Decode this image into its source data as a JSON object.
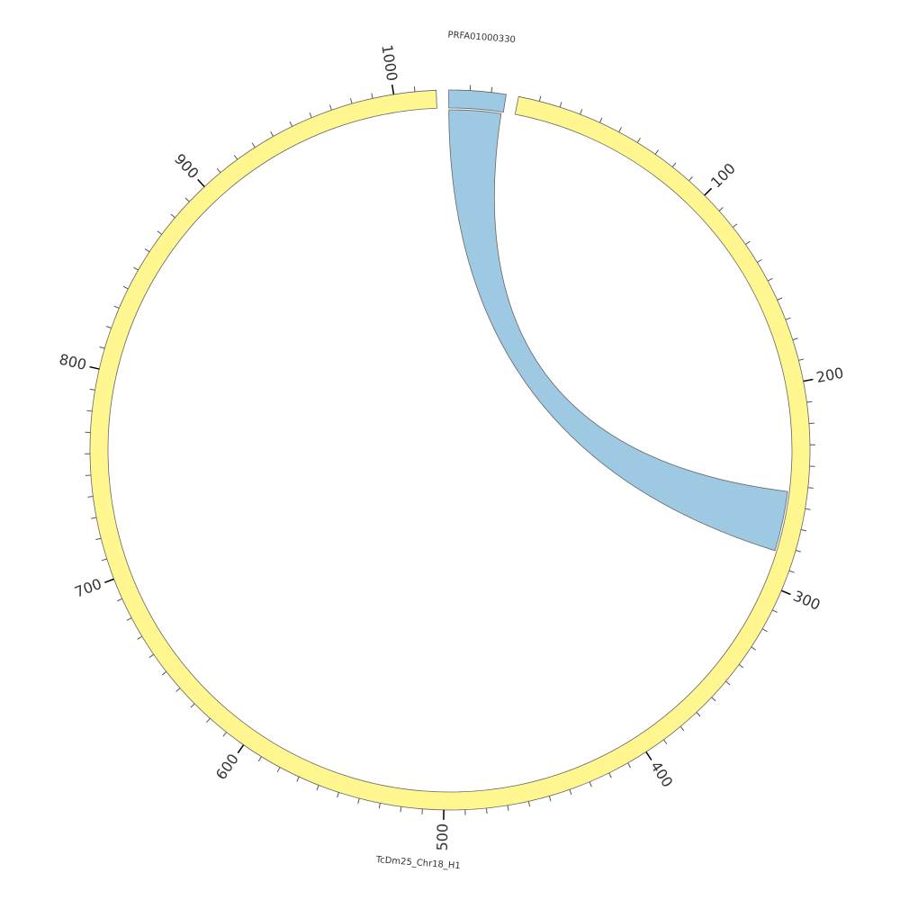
{
  "chart_data": {
    "type": "chord",
    "sectors": [
      {
        "name": "PRFA01000330",
        "color": "#9dc9e2",
        "start": 0,
        "end": 27,
        "ticks": [
          10,
          20
        ],
        "major_ticks": []
      },
      {
        "name": "TcDm25_Chr18_H1",
        "color": "#fff68f",
        "start": 0,
        "end": 1020,
        "ticks": [
          10,
          20,
          30,
          40,
          50,
          60,
          70,
          80,
          90,
          100,
          110,
          120,
          130,
          140,
          150,
          160,
          170,
          180,
          190,
          200,
          210,
          220,
          230,
          240,
          250,
          260,
          270,
          280,
          290,
          300,
          310,
          320,
          330,
          340,
          350,
          360,
          370,
          380,
          390,
          400,
          410,
          420,
          430,
          440,
          450,
          460,
          470,
          480,
          490,
          500,
          510,
          520,
          530,
          540,
          550,
          560,
          570,
          580,
          590,
          600,
          610,
          620,
          630,
          640,
          650,
          660,
          670,
          680,
          690,
          700,
          710,
          720,
          730,
          740,
          750,
          760,
          770,
          780,
          790,
          800,
          810,
          820,
          830,
          840,
          850,
          860,
          870,
          880,
          890,
          900,
          910,
          920,
          930,
          940,
          950,
          960,
          970,
          980,
          990,
          1000,
          1010
        ],
        "major_ticks": [
          100,
          200,
          300,
          400,
          500,
          600,
          700,
          800,
          900,
          1000
        ]
      }
    ],
    "links": [
      {
        "source_sector": "PRFA01000330",
        "source": [
          0,
          26
        ],
        "target_sector": "TcDm25_Chr18_H1",
        "target": [
          253,
          283
        ],
        "color": "#9dc9e2"
      }
    ]
  }
}
